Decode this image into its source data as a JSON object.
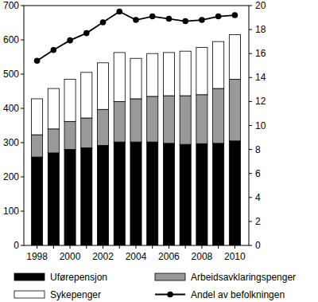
{
  "chart_data": {
    "type": "bar",
    "stacked": true,
    "legend": "bottom",
    "categories": [
      "1998",
      null,
      "2000",
      null,
      "2002",
      null,
      "2004",
      null,
      "2006",
      null,
      "2008",
      null,
      "2010"
    ],
    "series": [
      {
        "name": "Uførepensjon",
        "type": "bar",
        "color": "#000000",
        "values": [
          258,
          270,
          280,
          285,
          292,
          302,
          302,
          302,
          298,
          295,
          297,
          298,
          305
        ]
      },
      {
        "name": "Arbeidsavklaringspenger",
        "type": "bar",
        "color": "#999999",
        "values": [
          65,
          70,
          82,
          87,
          105,
          118,
          126,
          133,
          139,
          142,
          143,
          160,
          180
        ]
      },
      {
        "name": "Sykepenger",
        "type": "bar",
        "color": "#ffffff",
        "values": [
          105,
          118,
          123,
          133,
          136,
          143,
          118,
          125,
          126,
          130,
          138,
          137,
          130
        ]
      },
      {
        "name": "Andel av befolkningen",
        "type": "line",
        "axis": "y2",
        "color": "#000000",
        "marker": "circle",
        "values": [
          15.4,
          16.3,
          17.1,
          17.7,
          18.6,
          19.5,
          18.8,
          19.1,
          18.9,
          18.7,
          18.8,
          19.1,
          19.2
        ]
      }
    ],
    "ylim": [
      0,
      700
    ],
    "yticks": [
      0,
      100,
      200,
      300,
      400,
      500,
      600,
      700
    ],
    "y2lim": [
      0,
      20
    ],
    "y2ticks": [
      0,
      2,
      4,
      6,
      8,
      10,
      12,
      14,
      16,
      18,
      20
    ]
  }
}
